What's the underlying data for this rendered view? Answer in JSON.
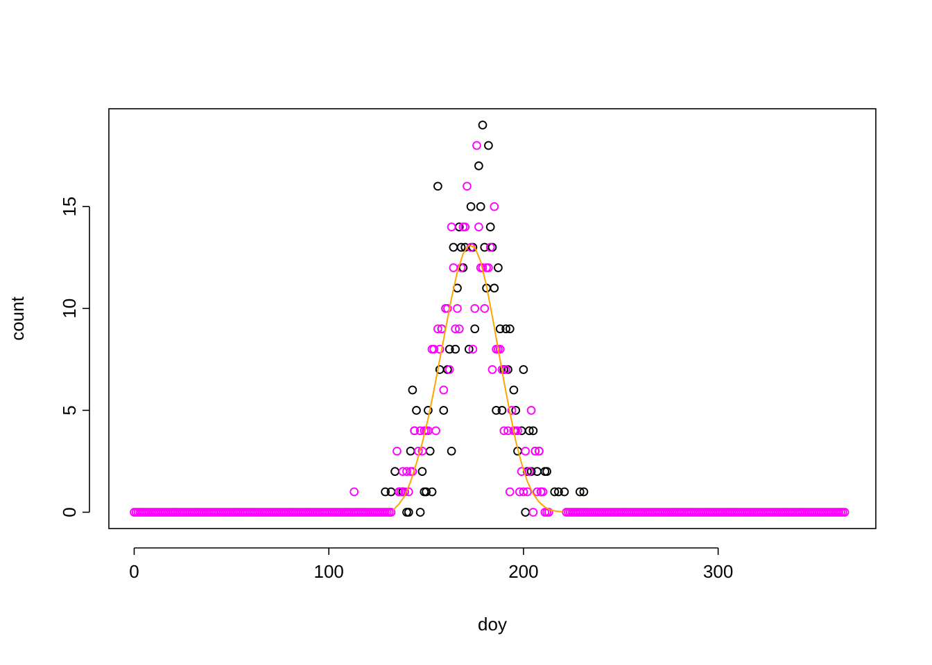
{
  "chart_data": {
    "type": "scatter",
    "xlabel": "doy",
    "ylabel": "count",
    "xlim": [
      -13,
      381
    ],
    "ylim": [
      -0.8,
      19.8
    ],
    "x_ticks": [
      0,
      100,
      200,
      300
    ],
    "y_ticks": [
      0,
      5,
      10,
      15
    ],
    "grid": false,
    "legend": "none",
    "background_points": {
      "x_range": [
        0,
        365
      ],
      "exclude": [
        132,
        222
      ],
      "value": 0
    },
    "series": [
      {
        "color": "#000000",
        "marker": "open-circle",
        "points": [
          [
            129,
            1
          ],
          [
            132,
            1
          ],
          [
            134,
            2
          ],
          [
            136,
            1
          ],
          [
            138,
            1
          ],
          [
            140,
            0
          ],
          [
            141,
            0
          ],
          [
            142,
            3
          ],
          [
            143,
            6
          ],
          [
            144,
            4
          ],
          [
            145,
            5
          ],
          [
            147,
            0
          ],
          [
            148,
            2
          ],
          [
            149,
            1
          ],
          [
            150,
            1
          ],
          [
            151,
            5
          ],
          [
            152,
            3
          ],
          [
            153,
            1
          ],
          [
            156,
            16
          ],
          [
            157,
            7
          ],
          [
            158,
            9
          ],
          [
            159,
            5
          ],
          [
            160,
            10
          ],
          [
            161,
            7
          ],
          [
            162,
            8
          ],
          [
            163,
            3
          ],
          [
            164,
            13
          ],
          [
            165,
            8
          ],
          [
            166,
            11
          ],
          [
            167,
            14
          ],
          [
            168,
            13
          ],
          [
            169,
            12
          ],
          [
            170,
            13
          ],
          [
            172,
            8
          ],
          [
            173,
            15
          ],
          [
            174,
            13
          ],
          [
            175,
            9
          ],
          [
            177,
            17
          ],
          [
            178,
            15
          ],
          [
            179,
            19
          ],
          [
            180,
            13
          ],
          [
            181,
            11
          ],
          [
            182,
            18
          ],
          [
            183,
            14
          ],
          [
            184,
            13
          ],
          [
            185,
            11
          ],
          [
            186,
            5
          ],
          [
            187,
            12
          ],
          [
            188,
            9
          ],
          [
            189,
            5
          ],
          [
            190,
            7
          ],
          [
            191,
            9
          ],
          [
            192,
            7
          ],
          [
            193,
            9
          ],
          [
            195,
            6
          ],
          [
            196,
            5
          ],
          [
            197,
            3
          ],
          [
            199,
            4
          ],
          [
            200,
            7
          ],
          [
            201,
            0
          ],
          [
            202,
            2
          ],
          [
            203,
            4
          ],
          [
            204,
            2
          ],
          [
            205,
            4
          ],
          [
            206,
            3
          ],
          [
            207,
            2
          ],
          [
            208,
            3
          ],
          [
            209,
            1
          ],
          [
            211,
            2
          ],
          [
            212,
            2
          ],
          [
            216,
            1
          ],
          [
            218,
            1
          ],
          [
            221,
            1
          ],
          [
            229,
            1
          ],
          [
            231,
            1
          ]
        ]
      },
      {
        "color": "#ff00ff",
        "marker": "open-circle",
        "points": [
          [
            113,
            1
          ],
          [
            135,
            3
          ],
          [
            136,
            1
          ],
          [
            137,
            1
          ],
          [
            138,
            2
          ],
          [
            139,
            1
          ],
          [
            140,
            2
          ],
          [
            141,
            1
          ],
          [
            142,
            2
          ],
          [
            143,
            2
          ],
          [
            144,
            4
          ],
          [
            146,
            3
          ],
          [
            147,
            4
          ],
          [
            148,
            3
          ],
          [
            149,
            4
          ],
          [
            150,
            4
          ],
          [
            151,
            4
          ],
          [
            153,
            8
          ],
          [
            154,
            8
          ],
          [
            155,
            4
          ],
          [
            156,
            9
          ],
          [
            157,
            8
          ],
          [
            158,
            9
          ],
          [
            159,
            6
          ],
          [
            160,
            10
          ],
          [
            161,
            10
          ],
          [
            162,
            7
          ],
          [
            163,
            14
          ],
          [
            164,
            12
          ],
          [
            165,
            9
          ],
          [
            166,
            10
          ],
          [
            167,
            9
          ],
          [
            168,
            12
          ],
          [
            169,
            14
          ],
          [
            170,
            14
          ],
          [
            171,
            16
          ],
          [
            173,
            13
          ],
          [
            174,
            8
          ],
          [
            175,
            10
          ],
          [
            176,
            18
          ],
          [
            177,
            14
          ],
          [
            178,
            12
          ],
          [
            179,
            12
          ],
          [
            180,
            10
          ],
          [
            181,
            12
          ],
          [
            182,
            12
          ],
          [
            183,
            13
          ],
          [
            184,
            7
          ],
          [
            185,
            15
          ],
          [
            186,
            8
          ],
          [
            187,
            8
          ],
          [
            188,
            8
          ],
          [
            189,
            7
          ],
          [
            190,
            4
          ],
          [
            191,
            7
          ],
          [
            192,
            4
          ],
          [
            193,
            1
          ],
          [
            194,
            5
          ],
          [
            195,
            4
          ],
          [
            196,
            4
          ],
          [
            197,
            4
          ],
          [
            198,
            1
          ],
          [
            199,
            2
          ],
          [
            200,
            1
          ],
          [
            201,
            3
          ],
          [
            202,
            1
          ],
          [
            203,
            2
          ],
          [
            204,
            5
          ],
          [
            205,
            0
          ],
          [
            206,
            3
          ],
          [
            207,
            1
          ],
          [
            208,
            3
          ],
          [
            209,
            1
          ],
          [
            210,
            1
          ],
          [
            211,
            0
          ],
          [
            212,
            0
          ],
          [
            213,
            0
          ]
        ]
      }
    ],
    "fit_line": {
      "color": "#ffa500",
      "x": [
        133,
        136,
        139,
        142,
        145,
        148,
        151,
        154,
        157,
        160,
        163,
        166,
        169,
        172,
        175,
        178,
        181,
        184,
        187,
        190,
        193,
        196,
        199,
        202,
        205,
        208,
        211,
        214,
        217,
        220
      ],
      "y": [
        0.1,
        0.4,
        0.8,
        1.5,
        2.4,
        3.4,
        4.6,
        6.0,
        7.5,
        9.0,
        10.5,
        11.8,
        12.7,
        13.1,
        13.0,
        12.3,
        11.1,
        9.6,
        8.0,
        6.4,
        4.9,
        3.5,
        2.4,
        1.5,
        0.9,
        0.5,
        0.25,
        0.1,
        0.05,
        0.02
      ]
    }
  }
}
